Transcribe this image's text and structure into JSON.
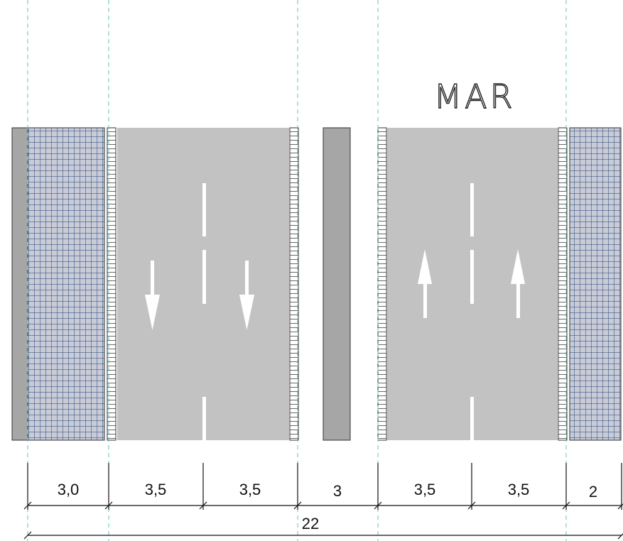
{
  "label": "MAR",
  "colors": {
    "asphalt": "#c2c2c2",
    "median": "#a6a6a6",
    "curb": "#a6a6a6",
    "sidewalk_grid": "#1f3f7a",
    "sidewalk_fill": "#c9ccd6",
    "guide_line": "#5fc4b6",
    "marking": "#ffffff"
  },
  "dimensions": {
    "segments": [
      "3,0",
      "3,5",
      "3,5",
      "3",
      "3,5",
      "3,5",
      "2"
    ],
    "total": "22"
  },
  "lanes": [
    {
      "id": "lane-1",
      "direction": "down"
    },
    {
      "id": "lane-2",
      "direction": "down"
    },
    {
      "id": "lane-3",
      "direction": "up"
    },
    {
      "id": "lane-4",
      "direction": "up"
    }
  ],
  "icons": [
    "arrow-down-icon",
    "arrow-up-icon"
  ]
}
